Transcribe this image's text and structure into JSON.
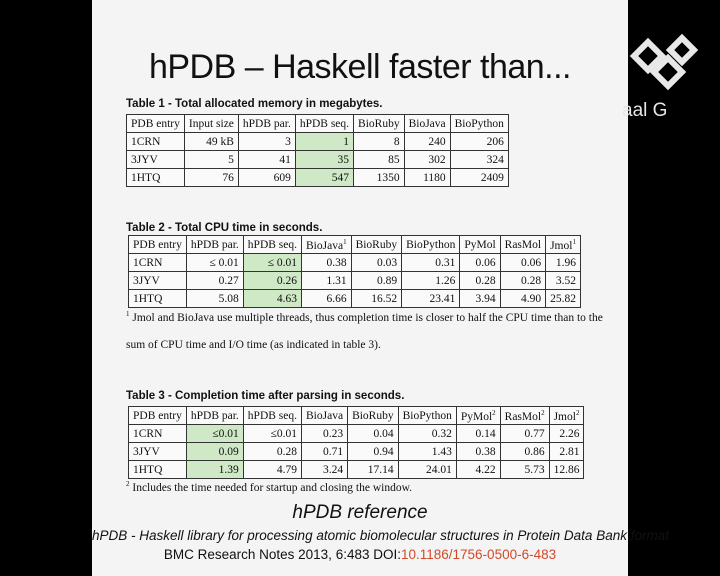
{
  "title": "hPDB – Haskell faster than...",
  "table1": {
    "caption": "Table 1 - Total allocated memory in megabytes.",
    "headers": [
      "PDB entry",
      "Input size",
      "hPDB par.",
      "hPDB seq.",
      "BioRuby",
      "BioJava",
      "BioPython"
    ],
    "rows": [
      [
        "1CRN",
        "49 kB",
        "3",
        "1",
        "8",
        "240",
        "206"
      ],
      [
        "3JYV",
        "5",
        "41",
        "35",
        "85",
        "302",
        "324"
      ],
      [
        "1HTQ",
        "76",
        "609",
        "547",
        "1350",
        "1180",
        "2409"
      ]
    ]
  },
  "table2": {
    "caption": "Table 2 - Total CPU time in seconds.",
    "headers": [
      "PDB entry",
      "hPDB par.",
      "hPDB seq.",
      "BioJava",
      "BioRuby",
      "BioPython",
      "PyMol",
      "RasMol",
      "Jmol"
    ],
    "rows": [
      [
        "1CRN",
        "≤ 0.01",
        "≤ 0.01",
        "0.38",
        "0.03",
        "0.31",
        "0.06",
        "0.06",
        "1.96"
      ],
      [
        "3JYV",
        "0.27",
        "0.26",
        "1.31",
        "0.89",
        "1.26",
        "0.28",
        "0.28",
        "3.52"
      ],
      [
        "1HTQ",
        "5.08",
        "4.63",
        "6.66",
        "16.52",
        "23.41",
        "3.94",
        "4.90",
        "25.82"
      ]
    ],
    "note_marker": "1",
    "note_line1": "Jmol and BioJava use multiple threads, thus completion time is closer to half the CPU time than to the",
    "note_line2": "sum of CPU time and I/O time (as indicated in table 3)."
  },
  "table3": {
    "caption": "Table 3 - Completion time after parsing in seconds.",
    "headers": [
      "PDB entry",
      "hPDB par.",
      "hPDB seq.",
      "BioJava",
      "BioRuby",
      "BioPython",
      "PyMol",
      "RasMol",
      "Jmol"
    ],
    "rows": [
      [
        "1CRN",
        "≤0.01",
        "≤0.01",
        "0.23",
        "0.04",
        "0.32",
        "0.14",
        "0.77",
        "2.26"
      ],
      [
        "3JYV",
        "0.09",
        "0.28",
        "0.71",
        "0.94",
        "1.43",
        "0.38",
        "0.86",
        "2.81"
      ],
      [
        "1HTQ",
        "1.39",
        "4.79",
        "3.24",
        "17.14",
        "24.01",
        "4.22",
        "5.73",
        "12.86"
      ]
    ],
    "note_marker": "2",
    "note": "Includes the time needed for startup and closing the window."
  },
  "reference": {
    "heading": "hPDB reference",
    "line1": "hPDB - Haskell library for processing atomic biomolecular structures in Protein Data Bank format",
    "line2_prefix": "BMC Research Notes 2013, 6:483  DOI:",
    "doi": "10.1186/1756-0500-6-483"
  },
  "logo_text": "aal G",
  "highlight_color": "#cfe8c6",
  "doi_color": "#d24a2a"
}
